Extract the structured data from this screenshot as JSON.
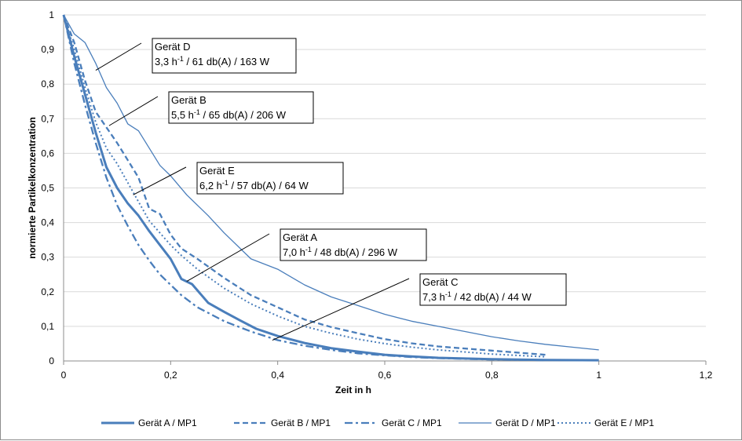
{
  "chart_data": {
    "type": "line",
    "xlabel": "Zeit in h",
    "ylabel": "normierte Partikelkonzentration",
    "xlim": [
      0,
      1.2
    ],
    "ylim": [
      0,
      1
    ],
    "x_ticks": [
      "0",
      "0,2",
      "0,4",
      "0,6",
      "0,8",
      "1",
      "1,2"
    ],
    "y_ticks": [
      "0",
      "0,1",
      "0,2",
      "0,3",
      "0,4",
      "0,5",
      "0,6",
      "0,7",
      "0,8",
      "0,9",
      "1"
    ],
    "grid": "horizontal",
    "legend_position": "bottom",
    "series": [
      {
        "name": "Gerät A / MP1",
        "style": "solid-thick",
        "color": "#4a7ebb",
        "x": [
          0,
          0.02,
          0.04,
          0.06,
          0.08,
          0.1,
          0.12,
          0.14,
          0.16,
          0.18,
          0.2,
          0.22,
          0.24,
          0.27,
          0.3,
          0.33,
          0.36,
          0.4,
          0.45,
          0.5,
          0.55,
          0.6,
          0.65,
          0.7,
          0.8,
          0.9,
          1.0
        ],
        "y": [
          1,
          0.88,
          0.77,
          0.66,
          0.56,
          0.5,
          0.455,
          0.42,
          0.375,
          0.335,
          0.295,
          0.237,
          0.222,
          0.168,
          0.142,
          0.117,
          0.093,
          0.072,
          0.052,
          0.037,
          0.027,
          0.018,
          0.013,
          0.009,
          0.005,
          0.003,
          0.002
        ]
      },
      {
        "name": "Gerät B / MP1",
        "style": "dashed",
        "color": "#4a7ebb",
        "x": [
          0,
          0.02,
          0.04,
          0.06,
          0.08,
          0.1,
          0.12,
          0.14,
          0.16,
          0.18,
          0.2,
          0.22,
          0.25,
          0.3,
          0.35,
          0.4,
          0.45,
          0.5,
          0.55,
          0.6,
          0.65,
          0.7,
          0.8,
          0.9
        ],
        "y": [
          1,
          0.92,
          0.81,
          0.72,
          0.675,
          0.63,
          0.58,
          0.53,
          0.44,
          0.425,
          0.365,
          0.325,
          0.295,
          0.24,
          0.19,
          0.155,
          0.12,
          0.098,
          0.08,
          0.063,
          0.051,
          0.042,
          0.03,
          0.018
        ]
      },
      {
        "name": "Gerät C / MP1",
        "style": "dash-dot",
        "color": "#4a7ebb",
        "x": [
          0,
          0.02,
          0.04,
          0.06,
          0.08,
          0.1,
          0.12,
          0.14,
          0.16,
          0.18,
          0.2,
          0.22,
          0.25,
          0.3,
          0.35,
          0.4,
          0.45,
          0.5,
          0.55,
          0.6,
          0.65,
          0.7,
          0.75,
          0.8,
          0.85,
          0.9
        ],
        "y": [
          1,
          0.86,
          0.74,
          0.63,
          0.53,
          0.45,
          0.39,
          0.335,
          0.29,
          0.25,
          0.22,
          0.19,
          0.155,
          0.115,
          0.085,
          0.06,
          0.044,
          0.032,
          0.022,
          0.016,
          0.011,
          0.008,
          0.006,
          0.004,
          0.003,
          0.002
        ]
      },
      {
        "name": "Gerät D / MP1",
        "style": "solid-thin",
        "color": "#4a7ebb",
        "x": [
          0,
          0.02,
          0.04,
          0.06,
          0.08,
          0.1,
          0.12,
          0.14,
          0.16,
          0.18,
          0.2,
          0.23,
          0.27,
          0.3,
          0.35,
          0.4,
          0.45,
          0.5,
          0.55,
          0.6,
          0.65,
          0.7,
          0.75,
          0.8,
          0.85,
          0.9,
          0.95,
          1.0
        ],
        "y": [
          1,
          0.945,
          0.92,
          0.86,
          0.79,
          0.745,
          0.685,
          0.665,
          0.615,
          0.565,
          0.535,
          0.48,
          0.42,
          0.37,
          0.295,
          0.265,
          0.22,
          0.185,
          0.16,
          0.135,
          0.115,
          0.1,
          0.085,
          0.07,
          0.058,
          0.048,
          0.04,
          0.032
        ]
      },
      {
        "name": "Gerät E / MP1",
        "style": "dotted",
        "color": "#4a7ebb",
        "x": [
          0,
          0.02,
          0.04,
          0.06,
          0.08,
          0.1,
          0.12,
          0.14,
          0.16,
          0.18,
          0.2,
          0.22,
          0.25,
          0.3,
          0.35,
          0.4,
          0.45,
          0.5,
          0.55,
          0.6,
          0.65,
          0.7,
          0.8,
          0.9
        ],
        "y": [
          1,
          0.9,
          0.79,
          0.69,
          0.615,
          0.57,
          0.515,
          0.46,
          0.405,
          0.37,
          0.335,
          0.305,
          0.265,
          0.21,
          0.165,
          0.13,
          0.1,
          0.08,
          0.063,
          0.05,
          0.04,
          0.032,
          0.02,
          0.012
        ]
      }
    ],
    "annotations": [
      {
        "title": "Gerät D",
        "base": "3,3 h",
        "sup": "-1",
        "rest": " / 61 db(A) / 163 W",
        "point": [
          0.06,
          0.84
        ]
      },
      {
        "title": "Gerät B",
        "base": "5,5 h",
        "sup": "-1",
        "rest": " / 65 db(A) / 206 W",
        "point": [
          0.085,
          0.68
        ]
      },
      {
        "title": "Gerät E",
        "base": "6,2 h",
        "sup": "-1",
        "rest": " / 57 db(A) / 64 W",
        "point": [
          0.13,
          0.48
        ]
      },
      {
        "title": "Gerät A",
        "base": "7,0 h",
        "sup": "-1",
        "rest": " / 48 db(A) / 296 W",
        "point": [
          0.23,
          0.23
        ]
      },
      {
        "title": "Gerät C",
        "base": "7,3 h",
        "sup": "-1",
        "rest": " / 42 db(A) / 44 W",
        "point": [
          0.39,
          0.06
        ]
      }
    ]
  }
}
